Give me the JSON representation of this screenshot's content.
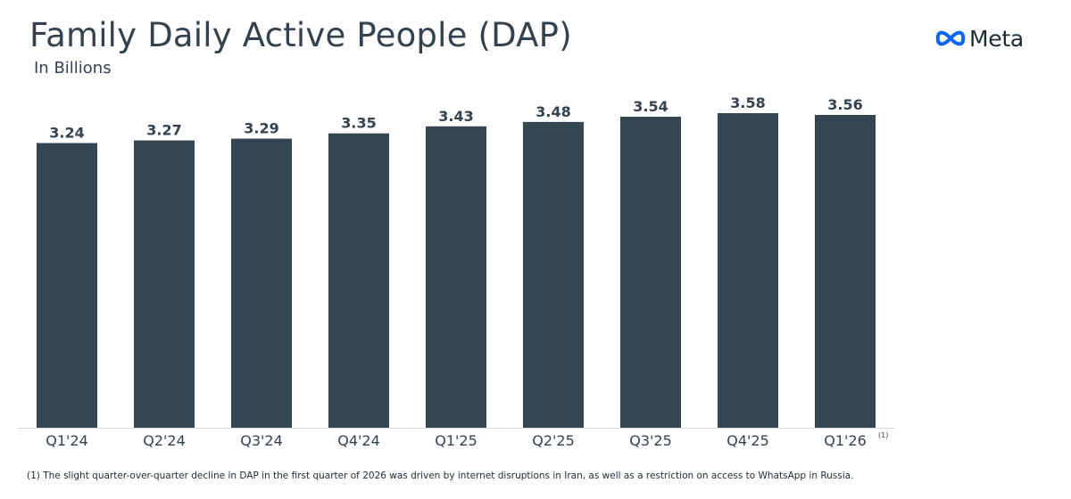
{
  "header": {
    "title": "Family Daily Active People (DAP)",
    "subtitle": "In Billions",
    "logo_text": "Meta"
  },
  "colors": {
    "bar": "#354653",
    "text": "#34424f",
    "axis": "#d5d8dc",
    "logo_blue": "#0866ff"
  },
  "chart_data": {
    "type": "bar",
    "title": "Family Daily Active People (DAP)",
    "subtitle": "In Billions",
    "categories": [
      "Q1'24",
      "Q2'24",
      "Q3'24",
      "Q4'24",
      "Q1'25",
      "Q2'25",
      "Q3'25",
      "Q4'25",
      "Q1'26"
    ],
    "values": [
      3.24,
      3.27,
      3.29,
      3.35,
      3.43,
      3.48,
      3.54,
      3.58,
      3.56
    ],
    "category_footnote_refs": [
      "",
      "",
      "",
      "",
      "",
      "",
      "",
      "",
      "(1)"
    ],
    "ylim": [
      0,
      3.58
    ],
    "grid": false,
    "legend": "none"
  },
  "footnote": "(1) The slight quarter-over-quarter decline in DAP in the first quarter of 2026 was driven by internet disruptions in Iran, as well as a restriction on access to WhatsApp in Russia."
}
